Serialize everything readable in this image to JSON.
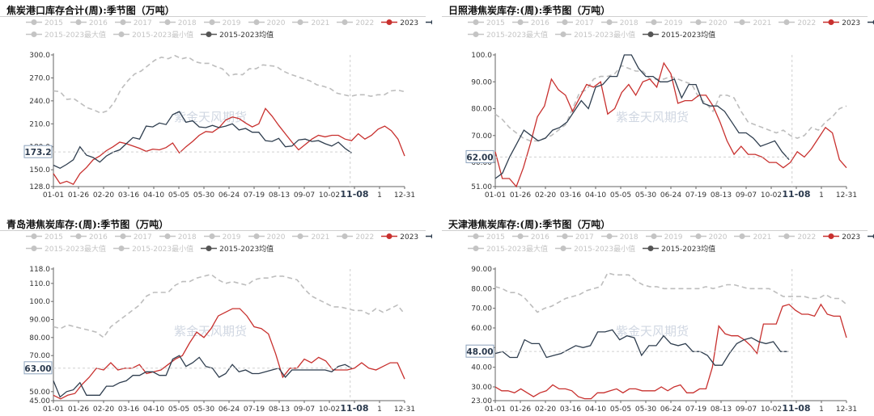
{
  "watermark": "紫金天风期货",
  "colors": {
    "bg": "#ffffff",
    "s2023": "#c8302e",
    "s2024": "#2f3e4f",
    "avg": "#555555",
    "range": "#bfbfbf",
    "inactive": "#c4c4c4"
  },
  "legend_rows": [
    [
      "2015",
      "2016",
      "2017",
      "2018",
      "2019",
      "2020",
      "2021",
      "2022",
      "2023",
      "2024"
    ],
    [
      "2015-2023最大值",
      "2015-2023最小值",
      "2015-2023均值"
    ]
  ],
  "legend_active": [
    "2023",
    "2024",
    "2015-2023均值"
  ],
  "x_ticks": [
    "01-01",
    "01-26",
    "02-20",
    "03-16",
    "04-10",
    "05-05",
    "05-30",
    "06-24",
    "07-19",
    "08-13",
    "09-07",
    "10-02",
    "11-08",
    "1",
    "12-31"
  ],
  "chart_data": [
    {
      "type": "line",
      "title": "焦炭港口库存合计(周):季节图（万吨）",
      "y_ticks": [
        "128.0",
        "150.0",
        "180.0",
        "210.0",
        "240.0",
        "270.0",
        "300.0"
      ],
      "ylim": [
        128,
        300
      ],
      "cursor_value": "173.2",
      "series": [
        {
          "name": "2023",
          "values": [
            145,
            132,
            135,
            131,
            145,
            153,
            163,
            168,
            175,
            180,
            186,
            184,
            181,
            178,
            174,
            177,
            176,
            179,
            185,
            172,
            180,
            187,
            195,
            200,
            199,
            205,
            215,
            219,
            217,
            211,
            206,
            210,
            230,
            220,
            208,
            197,
            186,
            176,
            183,
            190,
            195,
            193,
            195,
            195,
            190,
            188,
            197,
            190,
            195,
            203,
            207,
            201,
            190,
            168
          ]
        },
        {
          "name": "2024",
          "values": [
            156,
            152,
            157,
            163,
            180,
            169,
            166,
            160,
            168,
            173,
            176,
            184,
            192,
            190,
            207,
            206,
            211,
            209,
            222,
            226,
            212,
            214,
            206,
            205,
            208,
            205,
            207,
            210,
            202,
            204,
            199,
            199,
            188,
            187,
            191,
            180,
            181,
            189,
            190,
            187,
            188,
            184,
            181,
            186,
            178,
            172
          ]
        },
        {
          "name": "2015-2023均值",
          "values": [
            253,
            252,
            242,
            243,
            237,
            231,
            228,
            224,
            227,
            238,
            255,
            266,
            275,
            279,
            286,
            293,
            297,
            295,
            299,
            295,
            297,
            291,
            289,
            289,
            285,
            282,
            273,
            275,
            274,
            282,
            282,
            287,
            286,
            285,
            279,
            275,
            272,
            269,
            266,
            261,
            259,
            256,
            250,
            248,
            246,
            248,
            248,
            246,
            248,
            248,
            253,
            254,
            252
          ]
        }
      ]
    },
    {
      "type": "line",
      "title": "日照港焦炭库存:(周):季节图（万吨）",
      "y_ticks": [
        "51.00",
        "60.00",
        "70.00",
        "80.00",
        "90.00",
        "100.0"
      ],
      "ylim": [
        51,
        100
      ],
      "cursor_value": "62.00",
      "series": [
        {
          "name": "2023",
          "values": [
            64,
            54,
            54,
            51,
            58,
            67,
            77,
            81,
            91,
            87,
            85,
            79,
            84,
            89,
            88,
            90,
            78,
            80,
            86,
            89,
            85,
            90,
            91,
            88,
            97,
            93,
            82,
            83,
            83,
            85,
            85,
            81,
            75,
            68,
            63,
            66,
            63,
            63,
            62,
            60,
            60,
            58,
            60,
            64,
            62,
            65,
            69,
            73,
            71,
            61,
            58
          ]
        },
        {
          "name": "2024",
          "values": [
            54,
            56,
            62,
            67,
            72,
            70,
            68,
            69,
            72,
            73,
            75,
            79,
            83,
            80,
            88,
            89,
            92,
            92,
            100,
            100,
            95,
            92,
            92,
            90,
            90,
            91,
            84,
            89,
            89,
            82,
            81,
            81,
            79,
            75,
            71,
            71,
            69,
            66,
            67,
            68,
            64,
            61
          ]
        },
        {
          "name": "2015-2023均值",
          "values": [
            78,
            76,
            73,
            71,
            69,
            68,
            68,
            69,
            70,
            72,
            74,
            80,
            86,
            87,
            91,
            92,
            92,
            93,
            96,
            95,
            94,
            94,
            91,
            91,
            91,
            92,
            91,
            90,
            89,
            84,
            82,
            79,
            85,
            85,
            84,
            79,
            75,
            74,
            73,
            72,
            71,
            72,
            70,
            69,
            70,
            73,
            72,
            75,
            77,
            80,
            81
          ]
        }
      ]
    },
    {
      "type": "line",
      "title": "青岛港焦炭库存:(周):季节图（万吨）",
      "y_ticks": [
        "45.00",
        "50.00",
        "70.00",
        "80.00",
        "90.00",
        "100.0",
        "110.0",
        "118.0"
      ],
      "ylim": [
        45,
        118
      ],
      "cursor_value": "63.00",
      "series": [
        {
          "name": "2023",
          "values": [
            48,
            46,
            48,
            49,
            54,
            58,
            63,
            62,
            66,
            62,
            63,
            63,
            65,
            60,
            61,
            62,
            65,
            68,
            70,
            77,
            83,
            80,
            85,
            92,
            94,
            96,
            96,
            92,
            86,
            85,
            82,
            71,
            58,
            63,
            63,
            68,
            66,
            69,
            67,
            62,
            62,
            62,
            63,
            66,
            63,
            62,
            64,
            66,
            66,
            57
          ]
        },
        {
          "name": "2024",
          "values": [
            56,
            47,
            50,
            51,
            55,
            48,
            48,
            48,
            53,
            53,
            55,
            56,
            59,
            59,
            61,
            61,
            59,
            59,
            68,
            70,
            64,
            66,
            69,
            64,
            63,
            58,
            60,
            65,
            61,
            62,
            60,
            60,
            61,
            62,
            63,
            58,
            62,
            62,
            62,
            62,
            62,
            62,
            61,
            64,
            65,
            63
          ]
        },
        {
          "name": "2015-2023均值",
          "values": [
            86,
            85,
            87,
            86,
            85,
            84,
            83,
            80,
            86,
            89,
            92,
            95,
            98,
            103,
            105,
            105,
            105,
            109,
            111,
            111,
            113,
            114,
            115,
            112,
            110,
            111,
            110,
            109,
            112,
            113,
            113,
            114,
            114,
            113,
            112,
            107,
            103,
            101,
            99,
            97,
            97,
            96,
            95,
            95,
            93,
            96,
            94,
            96,
            98,
            93
          ]
        }
      ]
    },
    {
      "type": "line",
      "title": "天津港焦炭库存:(周):季节图（万吨）",
      "y_ticks": [
        "23.00",
        "30.00",
        "40.00",
        "50.00",
        "60.00",
        "70.00",
        "80.00",
        "90.00"
      ],
      "ylim": [
        23,
        90
      ],
      "cursor_value": "48.00",
      "series": [
        {
          "name": "2023",
          "values": [
            30,
            28,
            28,
            27,
            29,
            27,
            25,
            27,
            28,
            31,
            29,
            29,
            28,
            25,
            24,
            24,
            27,
            27,
            28,
            29,
            27,
            29,
            29,
            28,
            28,
            28,
            30,
            28,
            30,
            31,
            27,
            27,
            29,
            29,
            40,
            61,
            57,
            56,
            56,
            54,
            51,
            47,
            62,
            62,
            62,
            71,
            72,
            69,
            67,
            67,
            66,
            72,
            67,
            66,
            66,
            55
          ]
        },
        {
          "name": "2024",
          "values": [
            47,
            48,
            45,
            45,
            54,
            52,
            52,
            45,
            46,
            47,
            49,
            51,
            50,
            51,
            58,
            58,
            59,
            54,
            56,
            55,
            46,
            51,
            51,
            56,
            52,
            51,
            52,
            48,
            48,
            46,
            41,
            41,
            47,
            52,
            54,
            55,
            53,
            52,
            53,
            48,
            48
          ]
        },
        {
          "name": "2015-2023均值",
          "values": [
            81,
            80,
            78,
            78,
            76,
            72,
            68,
            70,
            71,
            73,
            75,
            76,
            77,
            79,
            80,
            81,
            88,
            87,
            87,
            87,
            84,
            82,
            81,
            81,
            80,
            80,
            80,
            80,
            80,
            80,
            81,
            80,
            81,
            82,
            82,
            81,
            80,
            80,
            80,
            80,
            78,
            76,
            76,
            76,
            76,
            75,
            75,
            77,
            75,
            75,
            72
          ]
        }
      ]
    }
  ]
}
